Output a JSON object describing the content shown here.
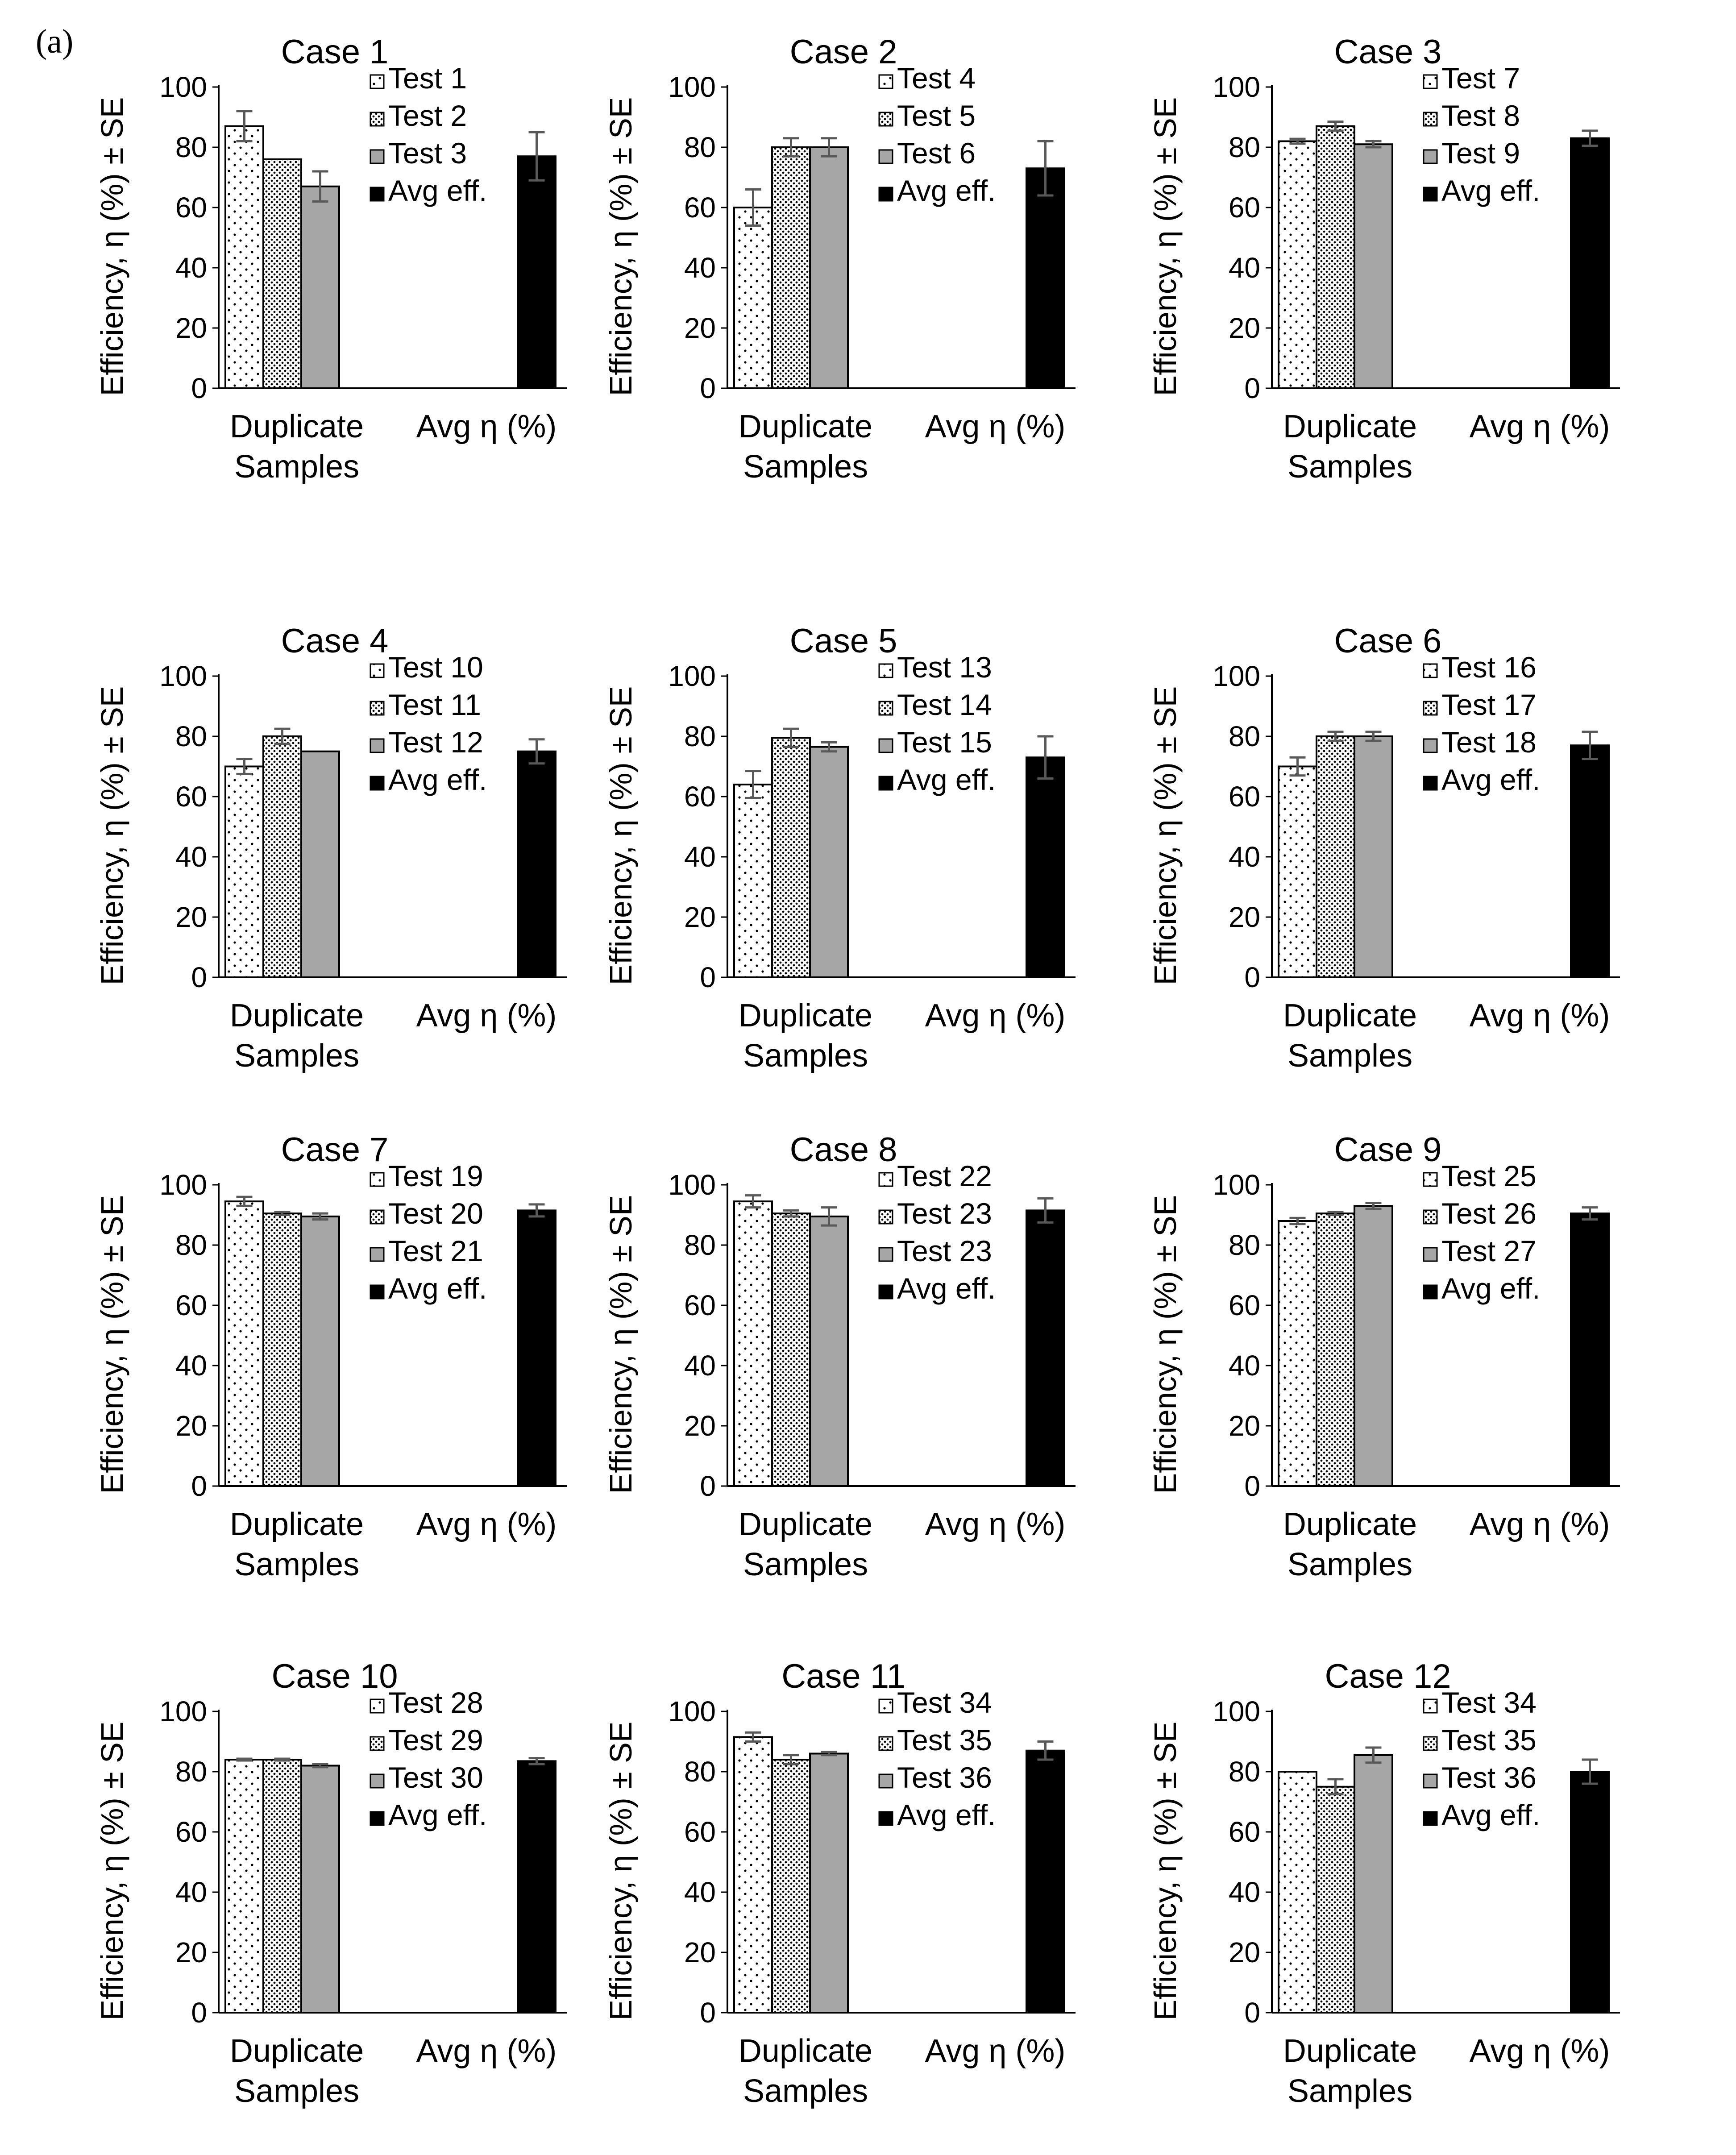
{
  "figure": {
    "panel_label": "(a)"
  },
  "colors": {
    "avg": "#000000",
    "test3": "#a6a6a6",
    "edge": "#000000",
    "error_bar": "#595959"
  },
  "chart_data": [
    {
      "type": "bar",
      "title": "Case 1",
      "ylabel": "Efficiency, η (%) ± SE",
      "ylim": [
        0,
        100
      ],
      "yticks": [
        0,
        20,
        40,
        60,
        80,
        100
      ],
      "categories": [
        "Duplicate Samples",
        "Avg η (%)"
      ],
      "series": [
        {
          "name": "Test 1",
          "pattern": "dots-sparse",
          "value": 87,
          "error": 5
        },
        {
          "name": "Test 2",
          "pattern": "dots-dense",
          "value": 76,
          "error": 0
        },
        {
          "name": "Test 3",
          "pattern": "gray",
          "value": 67,
          "error": 5
        },
        {
          "name": "Avg eff.",
          "pattern": "black",
          "value": 77,
          "error": 8
        }
      ]
    },
    {
      "type": "bar",
      "title": "Case 2",
      "ylabel": "Efficiency, η (%) ± SE",
      "ylim": [
        0,
        100
      ],
      "yticks": [
        0,
        20,
        40,
        60,
        80,
        100
      ],
      "categories": [
        "Duplicate Samples",
        "Avg η (%)"
      ],
      "series": [
        {
          "name": "Test 4",
          "pattern": "dots-sparse",
          "value": 60,
          "error": 6
        },
        {
          "name": "Test 5",
          "pattern": "dots-dense",
          "value": 80,
          "error": 3
        },
        {
          "name": "Test 6",
          "pattern": "gray",
          "value": 80,
          "error": 3
        },
        {
          "name": "Avg eff.",
          "pattern": "black",
          "value": 73,
          "error": 9
        }
      ]
    },
    {
      "type": "bar",
      "title": "Case 3",
      "ylabel": "Efficiency, η (%) ± SE",
      "ylim": [
        0,
        100
      ],
      "yticks": [
        0,
        20,
        40,
        60,
        80,
        100
      ],
      "categories": [
        "Duplicate Samples",
        "Avg η (%)"
      ],
      "series": [
        {
          "name": "Test 7",
          "pattern": "dots-sparse",
          "value": 82,
          "error": 0.8
        },
        {
          "name": "Test 8",
          "pattern": "dots-dense",
          "value": 87,
          "error": 1.5
        },
        {
          "name": "Test 9",
          "pattern": "gray",
          "value": 81,
          "error": 1
        },
        {
          "name": "Avg eff.",
          "pattern": "black",
          "value": 83,
          "error": 2.5
        }
      ]
    },
    {
      "type": "bar",
      "title": "Case 4",
      "ylabel": "Efficiency, η (%) ± SE",
      "ylim": [
        0,
        100
      ],
      "yticks": [
        0,
        20,
        40,
        60,
        80,
        100
      ],
      "categories": [
        "Duplicate Samples",
        "Avg η (%)"
      ],
      "series": [
        {
          "name": "Test 10",
          "pattern": "dots-sparse",
          "value": 70,
          "error": 2.5
        },
        {
          "name": "Test 11",
          "pattern": "dots-dense",
          "value": 80,
          "error": 2.5
        },
        {
          "name": "Test 12",
          "pattern": "gray",
          "value": 75,
          "error": 0
        },
        {
          "name": "Avg eff.",
          "pattern": "black",
          "value": 75,
          "error": 4
        }
      ]
    },
    {
      "type": "bar",
      "title": "Case 5",
      "ylabel": "Efficiency, η (%) ± SE",
      "ylim": [
        0,
        100
      ],
      "yticks": [
        0,
        20,
        40,
        60,
        80,
        100
      ],
      "categories": [
        "Duplicate Samples",
        "Avg η (%)"
      ],
      "series": [
        {
          "name": "Test 13",
          "pattern": "dots-sparse",
          "value": 64,
          "error": 4.5
        },
        {
          "name": "Test 14",
          "pattern": "dots-dense",
          "value": 79.5,
          "error": 3
        },
        {
          "name": "Test 15",
          "pattern": "gray",
          "value": 76.5,
          "error": 1.5
        },
        {
          "name": "Avg eff.",
          "pattern": "black",
          "value": 73,
          "error": 7
        }
      ]
    },
    {
      "type": "bar",
      "title": "Case 6",
      "ylabel": "Efficiency, η (%) ± SE",
      "ylim": [
        0,
        100
      ],
      "yticks": [
        0,
        20,
        40,
        60,
        80,
        100
      ],
      "categories": [
        "Duplicate Samples",
        "Avg η (%)"
      ],
      "series": [
        {
          "name": "Test 16",
          "pattern": "dots-sparse",
          "value": 70,
          "error": 3
        },
        {
          "name": "Test 17",
          "pattern": "dots-dense",
          "value": 80,
          "error": 1.5
        },
        {
          "name": "Test 18",
          "pattern": "gray",
          "value": 80,
          "error": 1.5
        },
        {
          "name": "Avg eff.",
          "pattern": "black",
          "value": 77,
          "error": 4.5
        }
      ]
    },
    {
      "type": "bar",
      "title": "Case 7",
      "ylabel": "Efficiency, η (%) ± SE",
      "ylim": [
        0,
        100
      ],
      "yticks": [
        0,
        20,
        40,
        60,
        80,
        100
      ],
      "categories": [
        "Duplicate Samples",
        "Avg η (%)"
      ],
      "series": [
        {
          "name": "Test 19",
          "pattern": "dots-sparse",
          "value": 94.5,
          "error": 1.5
        },
        {
          "name": "Test 20",
          "pattern": "dots-dense",
          "value": 90.5,
          "error": 0.5
        },
        {
          "name": "Test 21",
          "pattern": "gray",
          "value": 89.5,
          "error": 1
        },
        {
          "name": "Avg eff.",
          "pattern": "black",
          "value": 91.5,
          "error": 2
        }
      ]
    },
    {
      "type": "bar",
      "title": "Case 8",
      "ylabel": "Efficiency, η (%) ± SE",
      "ylim": [
        0,
        100
      ],
      "yticks": [
        0,
        20,
        40,
        60,
        80,
        100
      ],
      "categories": [
        "Duplicate Samples",
        "Avg η (%)"
      ],
      "series": [
        {
          "name": "Test 22",
          "pattern": "dots-sparse",
          "value": 94.5,
          "error": 2
        },
        {
          "name": "Test 23",
          "pattern": "dots-dense",
          "value": 90.5,
          "error": 1
        },
        {
          "name": "Test 23",
          "pattern": "gray",
          "value": 89.5,
          "error": 3
        },
        {
          "name": "Avg eff.",
          "pattern": "black",
          "value": 91.5,
          "error": 4
        }
      ]
    },
    {
      "type": "bar",
      "title": "Case 9",
      "ylabel": "Efficiency, η (%) ± SE",
      "ylim": [
        0,
        100
      ],
      "yticks": [
        0,
        20,
        40,
        60,
        80,
        100
      ],
      "categories": [
        "Duplicate Samples",
        "Avg η (%)"
      ],
      "series": [
        {
          "name": "Test 25",
          "pattern": "dots-sparse",
          "value": 88,
          "error": 1
        },
        {
          "name": "Test 26",
          "pattern": "dots-dense",
          "value": 90.5,
          "error": 0.5
        },
        {
          "name": "Test 27",
          "pattern": "gray",
          "value": 93,
          "error": 1
        },
        {
          "name": "Avg eff.",
          "pattern": "black",
          "value": 90.5,
          "error": 2
        }
      ]
    },
    {
      "type": "bar",
      "title": "Case 10",
      "ylabel": "Efficiency, η (%) ± SE",
      "ylim": [
        0,
        100
      ],
      "yticks": [
        0,
        20,
        40,
        60,
        80,
        100
      ],
      "categories": [
        "Duplicate Samples",
        "Avg η (%)"
      ],
      "series": [
        {
          "name": "Test 28",
          "pattern": "dots-sparse",
          "value": 84,
          "error": 0.3
        },
        {
          "name": "Test 29",
          "pattern": "dots-dense",
          "value": 84,
          "error": 0.3
        },
        {
          "name": "Test 30",
          "pattern": "gray",
          "value": 82,
          "error": 0.5
        },
        {
          "name": "Avg eff.",
          "pattern": "black",
          "value": 83.5,
          "error": 1
        }
      ]
    },
    {
      "type": "bar",
      "title": "Case 11",
      "ylabel": "Efficiency, η (%) ± SE",
      "ylim": [
        0,
        100
      ],
      "yticks": [
        0,
        20,
        40,
        60,
        80,
        100
      ],
      "categories": [
        "Duplicate Samples",
        "Avg η (%)"
      ],
      "series": [
        {
          "name": "Test 34",
          "pattern": "dots-sparse",
          "value": 91.5,
          "error": 1.5
        },
        {
          "name": "Test 35",
          "pattern": "dots-dense",
          "value": 84,
          "error": 1.5
        },
        {
          "name": "Test 36",
          "pattern": "gray",
          "value": 86,
          "error": 0.5
        },
        {
          "name": "Avg eff.",
          "pattern": "black",
          "value": 87,
          "error": 3
        }
      ]
    },
    {
      "type": "bar",
      "title": "Case 12",
      "ylabel": "Efficiency, η (%) ± SE",
      "ylim": [
        0,
        100
      ],
      "yticks": [
        0,
        20,
        40,
        60,
        80,
        100
      ],
      "categories": [
        "Duplicate Samples",
        "Avg η (%)"
      ],
      "series": [
        {
          "name": "Test 34",
          "pattern": "dots-sparse",
          "value": 80,
          "error": 0
        },
        {
          "name": "Test 35",
          "pattern": "dots-dense",
          "value": 75,
          "error": 2.5
        },
        {
          "name": "Test 36",
          "pattern": "gray",
          "value": 85.5,
          "error": 2.5
        },
        {
          "name": "Avg eff.",
          "pattern": "black",
          "value": 80,
          "error": 4
        }
      ]
    }
  ]
}
